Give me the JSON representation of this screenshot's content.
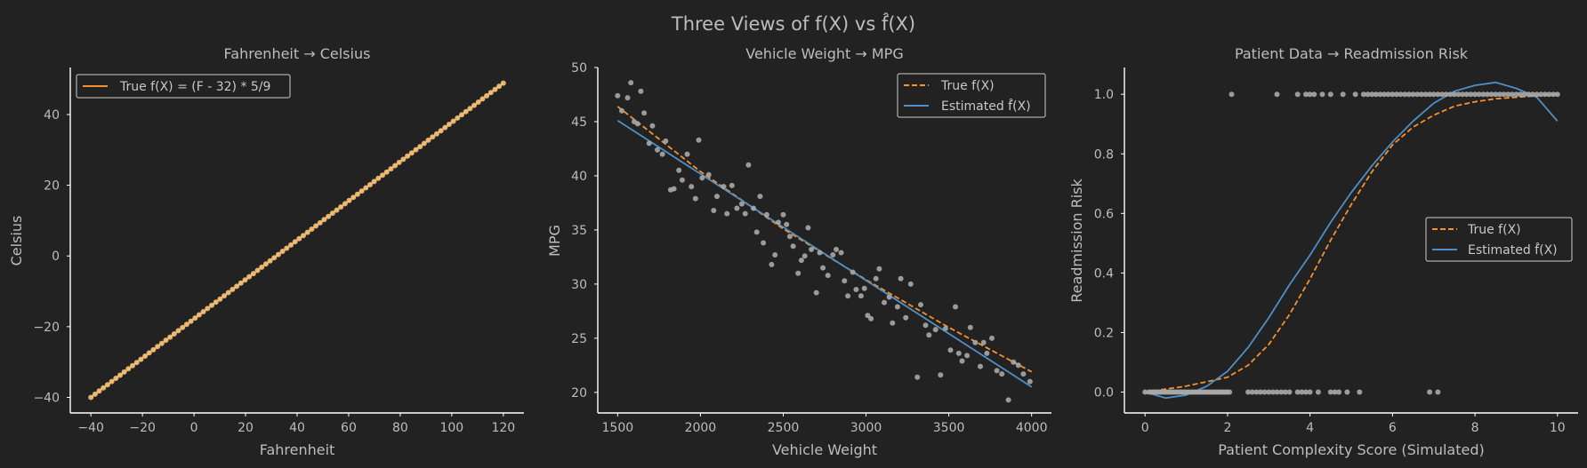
{
  "figure": {
    "suptitle": "Three Views of f(X) vs f̂(X)",
    "colors": {
      "background": "#222222",
      "axis": "#ffffff",
      "text": "#bdbdbd",
      "true_line": "#f5922f",
      "estimated_line": "#4f8fc6",
      "scatter": "#a9a9a9"
    }
  },
  "chart_data": [
    {
      "type": "line",
      "title": "Fahrenheit → Celsius",
      "xlabel": "Fahrenheit",
      "ylabel": "Celsius",
      "xlim": [
        -48,
        128
      ],
      "ylim": [
        -44.4,
        53.3
      ],
      "xticks": [
        -40,
        -20,
        0,
        20,
        40,
        60,
        80,
        100,
        120
      ],
      "xtick_labels": [
        "−40",
        "−20",
        "0",
        "20",
        "40",
        "60",
        "80",
        "100",
        "120"
      ],
      "yticks": [
        -40,
        -20,
        0,
        20,
        40
      ],
      "ytick_labels": [
        "−40",
        "−20",
        "0",
        "20",
        "40"
      ],
      "legend": "upper-left",
      "series": [
        {
          "name": "True f(X) = (F - 32) * 5/9",
          "kind": "line",
          "style": "solid",
          "color": "#f5922f",
          "x": [
            -40,
            120
          ],
          "y": [
            -40,
            48.9
          ]
        },
        {
          "kind": "scatter",
          "color": "#f5c27a",
          "x_start": -40,
          "x_end": 120,
          "count": 100,
          "y_formula": "(F - 32) * 5/9"
        }
      ]
    },
    {
      "type": "scatter",
      "title": "Vehicle Weight → MPG",
      "xlabel": "Vehicle Weight",
      "ylabel": "MPG",
      "xlim": [
        1380,
        4120
      ],
      "ylim": [
        18.1,
        50.0
      ],
      "xticks": [
        1500,
        2000,
        2500,
        3000,
        3500,
        4000
      ],
      "xtick_labels": [
        "1500",
        "2000",
        "2500",
        "3000",
        "3500",
        "4000"
      ],
      "yticks": [
        20,
        25,
        30,
        35,
        40,
        45,
        50
      ],
      "ytick_labels": [
        "20",
        "25",
        "30",
        "35",
        "40",
        "45",
        "50"
      ],
      "legend": "upper-right",
      "series": [
        {
          "name": "True f(X)",
          "kind": "line",
          "style": "dashed",
          "color": "#f5922f",
          "x": [
            1500,
            2000,
            2500,
            3000,
            3500,
            4000
          ],
          "y": [
            46.4,
            40.4,
            35.1,
            30.4,
            26.0,
            21.9
          ]
        },
        {
          "name": "Estimated f̂(X)",
          "kind": "line",
          "style": "solid",
          "color": "#4f8fc6",
          "x": [
            1500,
            4000
          ],
          "y": [
            45.1,
            20.5
          ]
        },
        {
          "kind": "scatter",
          "color": "#a9a9a9",
          "points": [
            [
              1500,
              47.4
            ],
            [
              1525,
              46.0
            ],
            [
              1560,
              47.2
            ],
            [
              1580,
              48.6
            ],
            [
              1600,
              45.0
            ],
            [
              1620,
              44.8
            ],
            [
              1640,
              47.8
            ],
            [
              1660,
              45.8
            ],
            [
              1690,
              43.0
            ],
            [
              1710,
              44.6
            ],
            [
              1740,
              42.4
            ],
            [
              1770,
              42.0
            ],
            [
              1790,
              43.2
            ],
            [
              1820,
              38.7
            ],
            [
              1840,
              38.8
            ],
            [
              1870,
              40.5
            ],
            [
              1890,
              39.6
            ],
            [
              1920,
              42.0
            ],
            [
              1945,
              39.0
            ],
            [
              1970,
              37.9
            ],
            [
              1990,
              43.3
            ],
            [
              2010,
              39.8
            ],
            [
              2050,
              40.1
            ],
            [
              2080,
              36.8
            ],
            [
              2100,
              38.1
            ],
            [
              2140,
              39.0
            ],
            [
              2160,
              36.5
            ],
            [
              2190,
              39.1
            ],
            [
              2220,
              37.0
            ],
            [
              2250,
              37.4
            ],
            [
              2270,
              36.5
            ],
            [
              2290,
              41.0
            ],
            [
              2320,
              37.0
            ],
            [
              2340,
              34.8
            ],
            [
              2360,
              38.1
            ],
            [
              2380,
              33.8
            ],
            [
              2400,
              36.4
            ],
            [
              2430,
              31.8
            ],
            [
              2450,
              32.7
            ],
            [
              2470,
              35.7
            ],
            [
              2500,
              36.4
            ],
            [
              2520,
              35.5
            ],
            [
              2540,
              34.4
            ],
            [
              2560,
              33.5
            ],
            [
              2590,
              31.0
            ],
            [
              2610,
              32.2
            ],
            [
              2630,
              32.6
            ],
            [
              2650,
              35.2
            ],
            [
              2670,
              33.2
            ],
            [
              2700,
              29.2
            ],
            [
              2720,
              32.9
            ],
            [
              2740,
              31.5
            ],
            [
              2770,
              30.8
            ],
            [
              2800,
              32.7
            ],
            [
              2820,
              33.2
            ],
            [
              2850,
              32.9
            ],
            [
              2870,
              30.3
            ],
            [
              2890,
              28.9
            ],
            [
              2920,
              31.1
            ],
            [
              2940,
              29.5
            ],
            [
              2970,
              28.9
            ],
            [
              2990,
              29.6
            ],
            [
              3010,
              27.1
            ],
            [
              3030,
              26.8
            ],
            [
              3060,
              30.5
            ],
            [
              3080,
              31.4
            ],
            [
              3110,
              28.3
            ],
            [
              3140,
              28.8
            ],
            [
              3160,
              26.4
            ],
            [
              3190,
              27.9
            ],
            [
              3210,
              30.5
            ],
            [
              3240,
              26.9
            ],
            [
              3270,
              30.0
            ],
            [
              3310,
              21.4
            ],
            [
              3330,
              28.1
            ],
            [
              3360,
              26.2
            ],
            [
              3380,
              25.3
            ],
            [
              3420,
              25.8
            ],
            [
              3450,
              21.6
            ],
            [
              3480,
              25.9
            ],
            [
              3510,
              23.9
            ],
            [
              3540,
              27.9
            ],
            [
              3560,
              23.6
            ],
            [
              3580,
              22.9
            ],
            [
              3610,
              23.4
            ],
            [
              3630,
              26.0
            ],
            [
              3660,
              24.6
            ],
            [
              3690,
              22.4
            ],
            [
              3710,
              24.6
            ],
            [
              3730,
              23.6
            ],
            [
              3760,
              25.0
            ],
            [
              3790,
              22.0
            ],
            [
              3820,
              21.7
            ],
            [
              3860,
              19.3
            ],
            [
              3890,
              22.8
            ],
            [
              3920,
              22.5
            ],
            [
              3950,
              21.7
            ],
            [
              3990,
              21.0
            ]
          ]
        }
      ]
    },
    {
      "type": "line",
      "title": "Patient Data → Readmission Risk",
      "xlabel": "Patient Complexity Score (Simulated)",
      "ylabel": "Readmission Risk",
      "xlim": [
        -0.5,
        10.5
      ],
      "ylim": [
        -0.07,
        1.09
      ],
      "xticks": [
        0,
        2,
        4,
        6,
        8,
        10
      ],
      "xtick_labels": [
        "0",
        "2",
        "4",
        "6",
        "8",
        "10"
      ],
      "yticks": [
        0.0,
        0.2,
        0.4,
        0.6,
        0.8,
        1.0
      ],
      "ytick_labels": [
        "0.0",
        "0.2",
        "0.4",
        "0.6",
        "0.8",
        "1.0"
      ],
      "legend": "center-right",
      "series": [
        {
          "name": "True f(X)",
          "kind": "line",
          "style": "dashed",
          "color": "#f5922f",
          "x": [
            0,
            1,
            2,
            2.5,
            3,
            3.5,
            4,
            4.5,
            5,
            5.5,
            6,
            6.5,
            7,
            7.5,
            8,
            8.5,
            9,
            10
          ],
          "y": [
            0.0,
            0.02,
            0.05,
            0.09,
            0.16,
            0.26,
            0.38,
            0.51,
            0.63,
            0.74,
            0.83,
            0.89,
            0.93,
            0.96,
            0.975,
            0.985,
            0.99,
            1.0
          ]
        },
        {
          "name": "Estimated f̂(X)",
          "kind": "line",
          "style": "solid",
          "color": "#4f8fc6",
          "x": [
            0,
            0.5,
            1,
            1.5,
            2,
            2.5,
            3,
            3.5,
            4,
            4.5,
            5,
            5.5,
            6,
            6.5,
            7,
            7.5,
            8,
            8.5,
            9,
            9.5,
            10
          ],
          "y": [
            0.0,
            -0.02,
            -0.01,
            0.02,
            0.07,
            0.15,
            0.25,
            0.36,
            0.46,
            0.57,
            0.67,
            0.76,
            0.84,
            0.91,
            0.97,
            1.01,
            1.03,
            1.04,
            1.02,
            0.99,
            0.91
          ]
        },
        {
          "kind": "scatter",
          "color": "#a9a9a9",
          "points_y0_x": [
            0.0,
            0.1,
            0.15,
            0.2,
            0.25,
            0.3,
            0.35,
            0.4,
            0.45,
            0.5,
            0.55,
            0.6,
            0.65,
            0.7,
            0.75,
            0.8,
            0.85,
            0.9,
            0.95,
            1.0,
            1.05,
            1.1,
            1.15,
            1.2,
            1.25,
            1.3,
            1.35,
            1.4,
            1.45,
            1.5,
            1.55,
            1.6,
            1.65,
            1.7,
            1.75,
            1.8,
            1.85,
            1.9,
            1.95,
            2.0,
            2.05,
            2.5,
            2.6,
            2.7,
            2.8,
            2.9,
            3.0,
            3.1,
            3.2,
            3.3,
            3.4,
            3.5,
            3.7,
            3.8,
            3.9,
            4.0,
            4.2,
            4.5,
            4.6,
            4.7,
            4.9,
            5.2,
            6.9,
            7.1
          ],
          "points_y1_x": [
            2.1,
            3.2,
            3.7,
            3.9,
            4.0,
            4.1,
            4.3,
            4.5,
            4.8,
            5.1,
            5.3,
            5.4,
            5.5,
            5.6,
            5.7,
            5.8,
            5.9,
            6.0,
            6.1,
            6.2,
            6.3,
            6.4,
            6.5,
            6.6,
            6.7,
            6.8,
            6.9,
            7.0,
            7.1,
            7.2,
            7.3,
            7.4,
            7.5,
            7.6,
            7.7,
            7.8,
            7.9,
            8.0,
            8.1,
            8.2,
            8.3,
            8.4,
            8.5,
            8.6,
            8.7,
            8.8,
            8.9,
            9.0,
            9.1,
            9.2,
            9.3,
            9.4,
            9.5,
            9.6,
            9.7,
            9.8,
            9.9,
            10.0
          ]
        }
      ]
    }
  ]
}
